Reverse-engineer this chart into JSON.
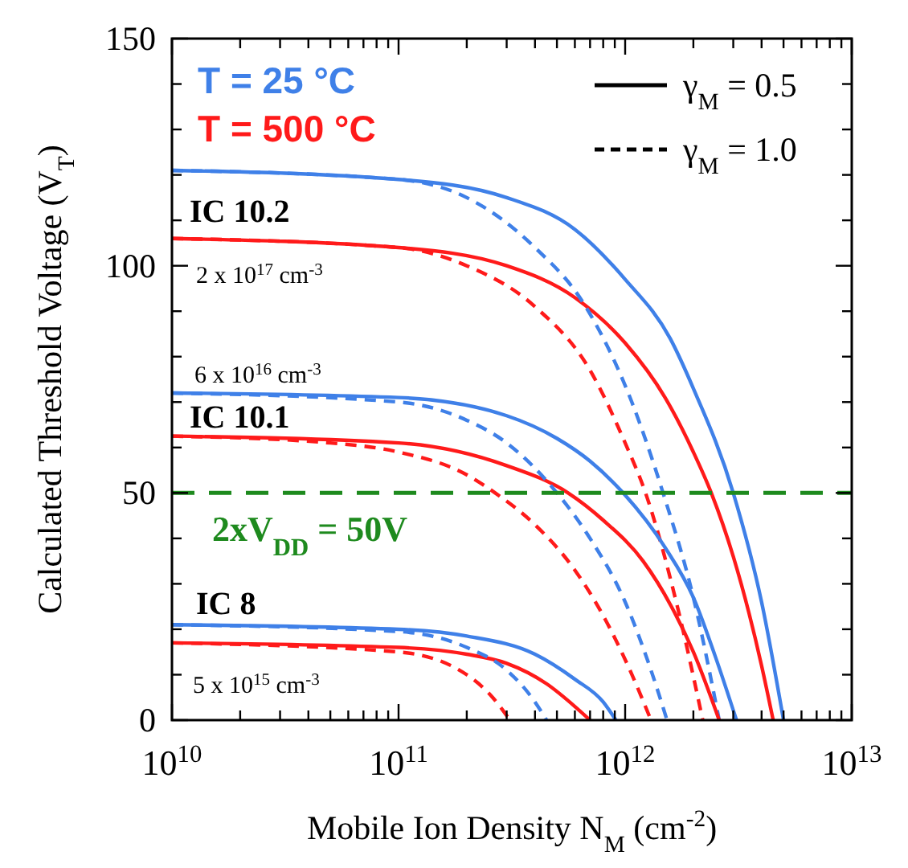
{
  "chart_data": {
    "type": "line",
    "xlabel": "Mobile Ion Density N$_{M}$ (cm$^{-2}$)",
    "ylabel": "Calculated Threshold Voltage (V$_{T}$)",
    "log": "x",
    "xlim": [
      10000000000.0,
      10000000000000.0
    ],
    "ylim": [
      0,
      150
    ],
    "xticks": [
      {
        "value": 10000000000.0,
        "label": "10$^{10}$"
      },
      {
        "value": 20000000000.0,
        "label": null
      },
      {
        "value": 30000000000.0,
        "label": null
      },
      {
        "value": 40000000000.0,
        "label": null
      },
      {
        "value": 50000000000.0,
        "label": null
      },
      {
        "value": 60000000000.0,
        "label": null
      },
      {
        "value": 70000000000.0,
        "label": null
      },
      {
        "value": 80000000000.0,
        "label": null
      },
      {
        "value": 90000000000.0,
        "label": null
      },
      {
        "value": 100000000000.0,
        "label": "10$^{11}$"
      },
      {
        "value": 200000000000.0,
        "label": null
      },
      {
        "value": 300000000000.0,
        "label": null
      },
      {
        "value": 400000000000.0,
        "label": null
      },
      {
        "value": 500000000000.0,
        "label": null
      },
      {
        "value": 600000000000.0,
        "label": null
      },
      {
        "value": 700000000000.0,
        "label": null
      },
      {
        "value": 800000000000.0,
        "label": null
      },
      {
        "value": 900000000000.0,
        "label": null
      },
      {
        "value": 1000000000000.0,
        "label": "10$^{12}$"
      },
      {
        "value": 2000000000000.0,
        "label": null
      },
      {
        "value": 3000000000000.0,
        "label": null
      },
      {
        "value": 4000000000000.0,
        "label": null
      },
      {
        "value": 5000000000000.0,
        "label": null
      },
      {
        "value": 6000000000000.0,
        "label": null
      },
      {
        "value": 7000000000000.0,
        "label": null
      },
      {
        "value": 8000000000000.0,
        "label": null
      },
      {
        "value": 9000000000000.0,
        "label": null
      },
      {
        "value": 10000000000000.0,
        "label": "10$^{13}$"
      }
    ],
    "yticks": [
      0,
      {
        "value": 10,
        "label": null
      },
      {
        "value": 20,
        "label": null
      },
      {
        "value": 30,
        "label": null
      },
      {
        "value": 40,
        "label": null
      },
      50,
      {
        "value": 60,
        "label": null
      },
      {
        "value": 70,
        "label": null
      },
      {
        "value": 80,
        "label": null
      },
      {
        "value": 90,
        "label": null
      },
      100,
      {
        "value": 110,
        "label": null
      },
      {
        "value": 120,
        "label": null
      },
      {
        "value": 130,
        "label": null
      },
      {
        "value": 140,
        "label": null
      },
      150
    ],
    "grid": false,
    "series": [
      {
        "color": "#3f80e8",
        "line_style": "solid",
        "x": [
          10000000000.0,
          100000000000.0,
          300000000000.0,
          600000000000.0,
          1000000000000.0,
          1580000000000.0,
          2000000000000.0,
          3000000000000.0,
          4000000000000.0,
          5000000000000.0
        ],
        "values": [
          121,
          119,
          115,
          108,
          97,
          84,
          73,
          50,
          26,
          0
        ]
      },
      {
        "color": "#ff1a1a",
        "line_style": "solid",
        "x": [
          10000000000.0,
          100000000000.0,
          300000000000.0,
          600000000000.0,
          1000000000000.0,
          1500000000000.0,
          2000000000000.0,
          2400000000000.0,
          3000000000000.0,
          4000000000000.0,
          4500000000000.0
        ],
        "values": [
          106,
          104,
          100,
          93,
          83,
          71,
          59,
          50,
          36,
          12,
          0
        ]
      },
      {
        "color": "#3f80e8",
        "line_style": "dashed",
        "x": [
          10000000000.0,
          100000000000.0,
          200000000000.0,
          400000000000.0,
          650000000000.0,
          1070000000000.0,
          1470000000000.0,
          2000000000000.0,
          2600000000000.0
        ],
        "values": [
          121,
          119,
          115,
          104,
          92,
          70,
          50,
          27,
          0
        ]
      },
      {
        "color": "#ff1a1a",
        "line_style": "dashed",
        "x": [
          10000000000.0,
          100000000000.0,
          200000000000.0,
          400000000000.0,
          700000000000.0,
          1000000000000.0,
          1230000000000.0,
          1700000000000.0,
          2200000000000.0
        ],
        "values": [
          106,
          104,
          100,
          91,
          77,
          61,
          50,
          25,
          0
        ]
      },
      {
        "color": "#3f80e8",
        "line_style": "solid",
        "x": [
          10000000000.0,
          100000000000.0,
          300000000000.0,
          500000000000.0,
          700000000000.0,
          980000000000.0,
          1500000000000.0,
          2000000000000.0,
          2500000000000.0,
          3100000000000.0
        ],
        "values": [
          72,
          71,
          67,
          62,
          57,
          50,
          38,
          27,
          14,
          0
        ]
      },
      {
        "color": "#ff1a1a",
        "line_style": "solid",
        "x": [
          10000000000.0,
          100000000000.0,
          300000000000.0,
          560000000000.0,
          800000000000.0,
          1200000000000.0,
          1600000000000.0,
          2000000000000.0,
          2600000000000.0
        ],
        "values": [
          62.5,
          61,
          56,
          50,
          44,
          35,
          25,
          15,
          0
        ]
      },
      {
        "color": "#3f80e8",
        "line_style": "dashed",
        "x": [
          10000000000.0,
          100000000000.0,
          200000000000.0,
          300000000000.0,
          500000000000.0,
          700000000000.0,
          1000000000000.0,
          1300000000000.0,
          1530000000000.0
        ],
        "values": [
          72,
          70,
          66,
          61,
          50,
          40,
          26,
          11,
          0
        ]
      },
      {
        "color": "#ff1a1a",
        "line_style": "dashed",
        "x": [
          10000000000.0,
          50000000000.0,
          100000000000.0,
          200000000000.0,
          267000000000.0,
          400000000000.0,
          600000000000.0,
          800000000000.0,
          1050000000000.0,
          1300000000000.0
        ],
        "values": [
          62.5,
          61,
          59,
          54,
          50,
          43,
          33,
          23,
          11,
          0
        ]
      },
      {
        "color": "#3f80e8",
        "line_style": "solid",
        "x": [
          10000000000.0,
          100000000000.0,
          200000000000.0,
          400000000000.0,
          600000000000.0,
          800000000000.0,
          910000000000.0
        ],
        "values": [
          21,
          20,
          18.5,
          14.5,
          9,
          4,
          0
        ]
      },
      {
        "color": "#ff1a1a",
        "line_style": "solid",
        "x": [
          10000000000.0,
          100000000000.0,
          200000000000.0,
          300000000000.0,
          450000000000.0,
          600000000000.0,
          700000000000.0
        ],
        "values": [
          17,
          16,
          14.5,
          12.5,
          8,
          3,
          0
        ]
      },
      {
        "color": "#3f80e8",
        "line_style": "dashed",
        "x": [
          10000000000.0,
          100000000000.0,
          200000000000.0,
          300000000000.0,
          400000000000.0,
          450000000000.0
        ],
        "values": [
          21,
          19.5,
          16,
          11,
          4,
          0
        ]
      },
      {
        "color": "#ff1a1a",
        "line_style": "dashed",
        "x": [
          10000000000.0,
          100000000000.0,
          200000000000.0,
          260000000000.0,
          310000000000.0
        ],
        "values": [
          17,
          15,
          10,
          5,
          0
        ]
      }
    ],
    "ref_lines": [
      {
        "axis": "y",
        "value": 50,
        "label": "2xV$_{DD}$ = 50V",
        "color": "#1e8a1e",
        "line_style": "dashed"
      }
    ],
    "annotations": [
      "T = 25 °C",
      "T = 500 °C",
      "γ$_{M}$ = 0.5",
      "γ$_{M}$ = 1.0",
      "IC 10.2",
      "2 x 10$^{17}$ cm$^{-3}$",
      "6 x 10$^{16}$ cm$^{-3}$",
      "IC 10.1",
      "IC 8",
      "5 x 10$^{15}$ cm$^{-3}$"
    ]
  }
}
